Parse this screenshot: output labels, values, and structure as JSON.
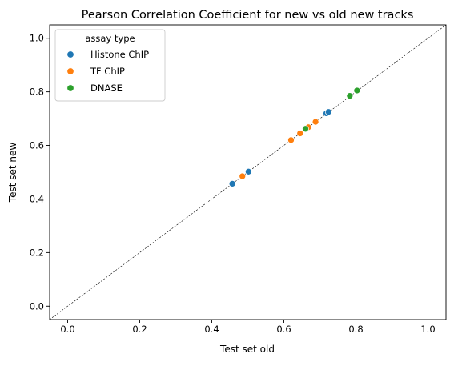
{
  "chart_data": {
    "type": "scatter",
    "title": "Pearson Correlation Coefficient for new vs old new tracks",
    "xlabel": "Test set old",
    "ylabel": "Test set new",
    "xlim": [
      -0.05,
      1.05
    ],
    "ylim": [
      -0.05,
      1.05
    ],
    "xticks": [
      "0.0",
      "0.2",
      "0.4",
      "0.6",
      "0.8",
      "1.0"
    ],
    "yticks": [
      "0.0",
      "0.2",
      "0.4",
      "0.6",
      "0.8",
      "1.0"
    ],
    "grid": false,
    "reference_line": "y = x (dashed)",
    "legend": {
      "title": "assay type",
      "placement": "top-left"
    },
    "series": [
      {
        "name": "Histone ChIP",
        "color": "#1f77b4",
        "points": [
          [
            0.457,
            0.457
          ],
          [
            0.502,
            0.502
          ],
          [
            0.718,
            0.72
          ],
          [
            0.724,
            0.725
          ]
        ]
      },
      {
        "name": "TF ChIP",
        "color": "#ff7f0e",
        "points": [
          [
            0.485,
            0.485
          ],
          [
            0.62,
            0.62
          ],
          [
            0.645,
            0.645
          ],
          [
            0.668,
            0.668
          ],
          [
            0.688,
            0.688
          ]
        ]
      },
      {
        "name": "DNASE",
        "color": "#2ca02c",
        "points": [
          [
            0.66,
            0.662
          ],
          [
            0.783,
            0.785
          ],
          [
            0.803,
            0.805
          ]
        ]
      }
    ]
  }
}
